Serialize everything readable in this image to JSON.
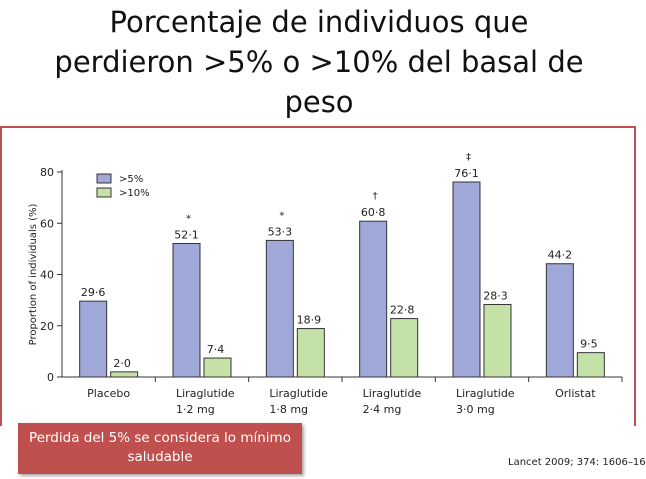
{
  "slide": {
    "title_lines": [
      "Porcentaje de individuos que",
      "perdieron >5% o >10% del basal de",
      "peso"
    ],
    "note": "Perdida del 5% se considera lo mínimo saludable",
    "citation": "Lancet 2009; 374: 1606–16"
  },
  "colors": {
    "accent": "#c0504d",
    "series_5": "#9fa8d8",
    "series_10": "#c4e2a8"
  },
  "chart_data": {
    "type": "bar",
    "ylabel": "Proportion of individuals (%)",
    "ylim": [
      0,
      80
    ],
    "yticks": [
      0,
      20,
      40,
      60,
      80
    ],
    "yticks_labels": [
      "0",
      "20",
      "40",
      "60",
      "80"
    ],
    "categories": [
      [
        "Placebo"
      ],
      [
        "Liraglutide",
        "1·2 mg"
      ],
      [
        "Liraglutide",
        "1·8 mg"
      ],
      [
        "Liraglutide",
        "2·4 mg"
      ],
      [
        "Liraglutide",
        "3·0 mg"
      ],
      [
        "Orlistat"
      ]
    ],
    "series": [
      {
        "name": ">5%",
        "color": "#9fa8d8",
        "values": [
          29.6,
          52.1,
          53.3,
          60.8,
          76.1,
          44.2
        ],
        "labels": [
          "29·6",
          "52·1",
          "53·3",
          "60·8",
          "76·1",
          "44·2"
        ]
      },
      {
        "name": ">10%",
        "color": "#c4e2a8",
        "values": [
          2.0,
          7.4,
          18.9,
          22.8,
          28.3,
          9.5
        ],
        "labels": [
          "2·0",
          "7·4",
          "18·9",
          "22·8",
          "28·3",
          "9·5"
        ]
      }
    ],
    "annotations": [
      "",
      "*",
      "*",
      "†",
      "‡",
      ""
    ],
    "legend_position": "top-left"
  }
}
